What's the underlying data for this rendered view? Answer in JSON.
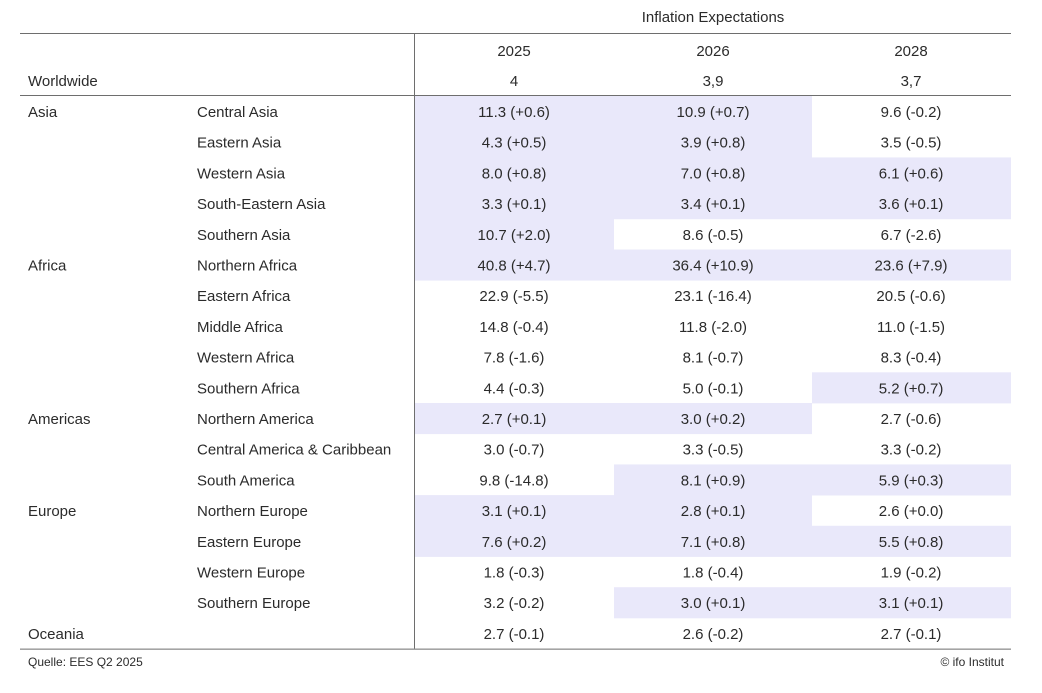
{
  "colors": {
    "highlight": "#e9e8fa",
    "rule": "#6e6e6e",
    "text": "#2b2b2b"
  },
  "chart_data": {
    "type": "table",
    "title": "Inflation Expectations",
    "years": [
      "2025",
      "2026",
      "2028"
    ],
    "worldwide": {
      "label": "Worldwide",
      "values": [
        "4",
        "3,9",
        "3,7"
      ]
    },
    "rows": [
      {
        "region": "Asia",
        "subregion": "Central Asia",
        "values": [
          "11.3 (+0.6)",
          "10.9 (+0.7)",
          "9.6 (-0.2)"
        ],
        "highlight": [
          true,
          true,
          false
        ]
      },
      {
        "region": "",
        "subregion": "Eastern Asia",
        "values": [
          "4.3 (+0.5)",
          "3.9 (+0.8)",
          "3.5 (-0.5)"
        ],
        "highlight": [
          true,
          true,
          false
        ]
      },
      {
        "region": "",
        "subregion": "Western Asia",
        "values": [
          "8.0 (+0.8)",
          "7.0 (+0.8)",
          "6.1 (+0.6)"
        ],
        "highlight": [
          true,
          true,
          true
        ]
      },
      {
        "region": "",
        "subregion": "South-Eastern Asia",
        "values": [
          "3.3 (+0.1)",
          "3.4 (+0.1)",
          "3.6 (+0.1)"
        ],
        "highlight": [
          true,
          true,
          true
        ]
      },
      {
        "region": "",
        "subregion": "Southern Asia",
        "values": [
          "10.7 (+2.0)",
          "8.6 (-0.5)",
          "6.7 (-2.6)"
        ],
        "highlight": [
          true,
          false,
          false
        ]
      },
      {
        "region": "Africa",
        "subregion": "Northern Africa",
        "values": [
          "40.8 (+4.7)",
          "36.4 (+10.9)",
          "23.6 (+7.9)"
        ],
        "highlight": [
          true,
          true,
          true
        ]
      },
      {
        "region": "",
        "subregion": "Eastern Africa",
        "values": [
          "22.9 (-5.5)",
          "23.1 (-16.4)",
          "20.5 (-0.6)"
        ],
        "highlight": [
          false,
          false,
          false
        ]
      },
      {
        "region": "",
        "subregion": "Middle Africa",
        "values": [
          "14.8 (-0.4)",
          "11.8 (-2.0)",
          "11.0 (-1.5)"
        ],
        "highlight": [
          false,
          false,
          false
        ]
      },
      {
        "region": "",
        "subregion": "Western Africa",
        "values": [
          "7.8 (-1.6)",
          "8.1 (-0.7)",
          "8.3 (-0.4)"
        ],
        "highlight": [
          false,
          false,
          false
        ]
      },
      {
        "region": "",
        "subregion": "Southern Africa",
        "values": [
          "4.4 (-0.3)",
          "5.0 (-0.1)",
          "5.2 (+0.7)"
        ],
        "highlight": [
          false,
          false,
          true
        ]
      },
      {
        "region": "Americas",
        "subregion": "Northern America",
        "values": [
          "2.7 (+0.1)",
          "3.0 (+0.2)",
          "2.7 (-0.6)"
        ],
        "highlight": [
          true,
          true,
          false
        ]
      },
      {
        "region": "",
        "subregion": "Central America & Caribbean",
        "values": [
          "3.0 (-0.7)",
          "3.3 (-0.5)",
          "3.3 (-0.2)"
        ],
        "highlight": [
          false,
          false,
          false
        ]
      },
      {
        "region": "",
        "subregion": "South America",
        "values": [
          "9.8 (-14.8)",
          "8.1 (+0.9)",
          "5.9 (+0.3)"
        ],
        "highlight": [
          false,
          true,
          true
        ]
      },
      {
        "region": "Europe",
        "subregion": "Northern Europe",
        "values": [
          "3.1 (+0.1)",
          "2.8 (+0.1)",
          "2.6 (+0.0)"
        ],
        "highlight": [
          true,
          true,
          false
        ]
      },
      {
        "region": "",
        "subregion": "Eastern Europe",
        "values": [
          "7.6 (+0.2)",
          "7.1 (+0.8)",
          "5.5 (+0.8)"
        ],
        "highlight": [
          true,
          true,
          true
        ]
      },
      {
        "region": "",
        "subregion": "Western Europe",
        "values": [
          "1.8 (-0.3)",
          "1.8 (-0.4)",
          "1.9 (-0.2)"
        ],
        "highlight": [
          false,
          false,
          false
        ]
      },
      {
        "region": "",
        "subregion": "Southern Europe",
        "values": [
          "3.2 (-0.2)",
          "3.0 (+0.1)",
          "3.1 (+0.1)"
        ],
        "highlight": [
          false,
          true,
          true
        ]
      },
      {
        "region": "Oceania",
        "subregion": "",
        "values": [
          "2.7 (-0.1)",
          "2.6 (-0.2)",
          "2.7 (-0.1)"
        ],
        "highlight": [
          false,
          false,
          false
        ]
      }
    ]
  },
  "footer": {
    "source": "Quelle: EES Q2 2025",
    "copyright": "© ifo Institut"
  }
}
